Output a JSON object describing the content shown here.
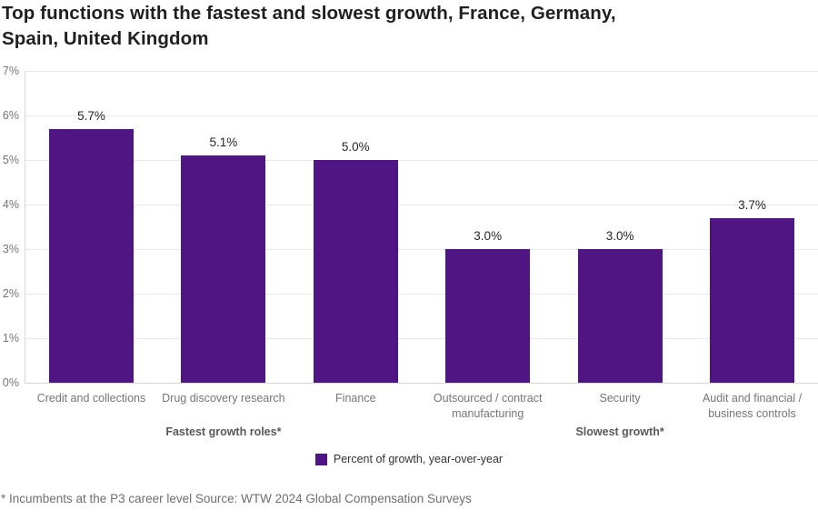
{
  "header": {
    "title_line1": "Top functions with the fastest and slowest growth, France, Germany,",
    "title_line2": "Spain, United Kingdom"
  },
  "chart_data": {
    "type": "bar",
    "title": "Top functions with the fastest and slowest growth, France, Germany, Spain, United Kingdom",
    "categories": [
      "Credit and collections",
      "Drug discovery research",
      "Finance",
      "Outsourced / contract manufacturing",
      "Security",
      "Audit and financial / business controls"
    ],
    "values": [
      5.7,
      5.1,
      5.0,
      3.0,
      3.0,
      3.7
    ],
    "value_labels": [
      "5.7%",
      "5.1%",
      "5.0%",
      "3.0%",
      "3.0%",
      "3.7%"
    ],
    "y_ticks": [
      "0%",
      "1%",
      "2%",
      "3%",
      "4%",
      "5%",
      "6%",
      "7%"
    ],
    "ylim": [
      0,
      7
    ],
    "xlabel": "",
    "ylabel": "",
    "grid": true,
    "bar_color": "#4F1583",
    "groups": [
      {
        "label": "Fastest growth roles*",
        "members": [
          0,
          1,
          2
        ]
      },
      {
        "label": "Slowest growth*",
        "members": [
          3,
          4,
          5
        ]
      }
    ],
    "legend": {
      "position": "bottom",
      "entries": [
        {
          "label": "Percent of growth, year-over-year",
          "color": "#4F1583"
        }
      ]
    }
  },
  "footer": {
    "note": "* Incumbents at the P3 career level Source: WTW 2024 Global Compensation Surveys"
  }
}
